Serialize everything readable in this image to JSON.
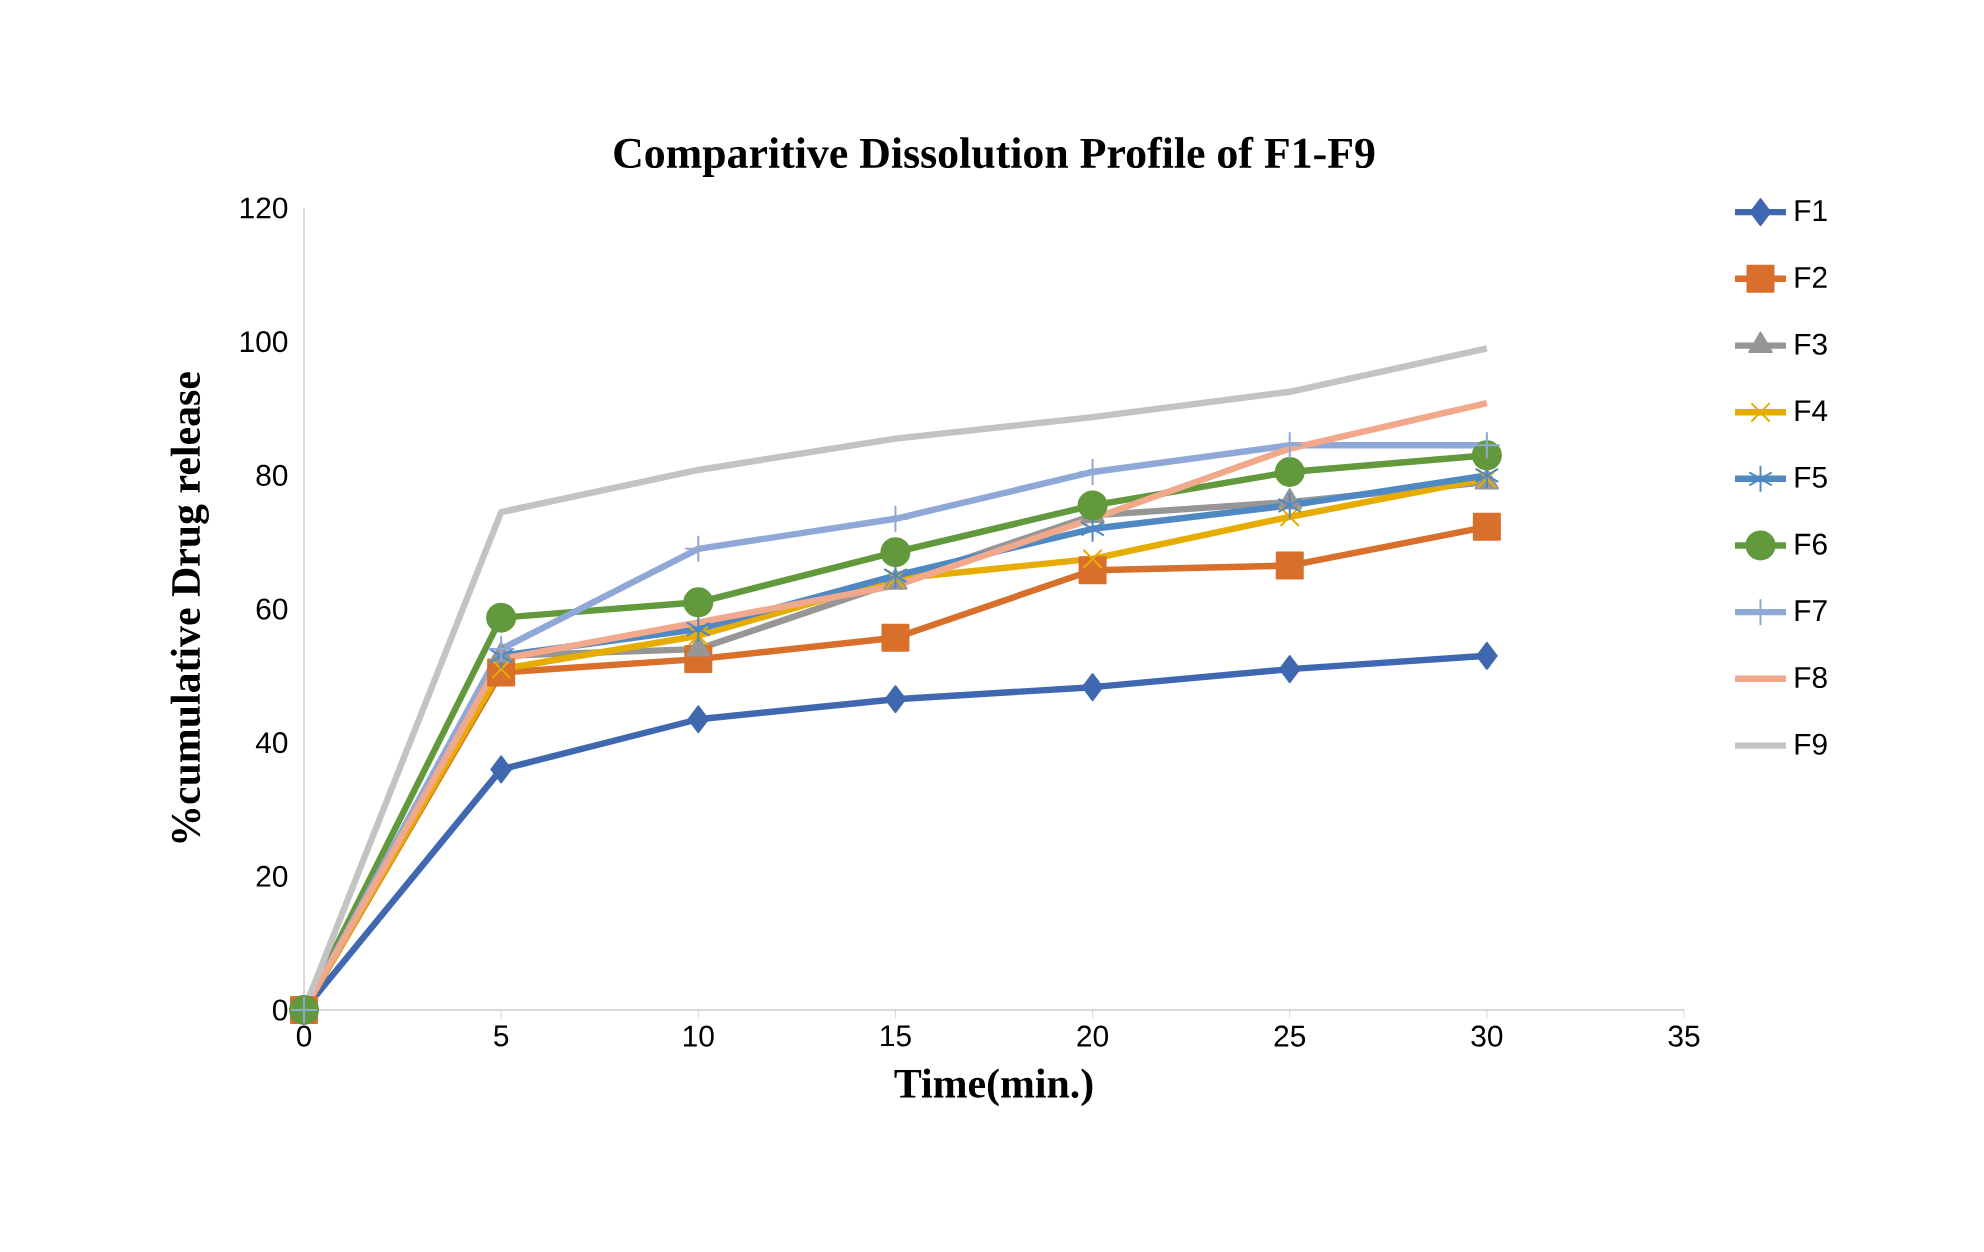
{
  "chart_data": {
    "type": "line",
    "title": "Comparitive Dissolution Profile of F1-F9",
    "xlabel": "Time(min.)",
    "ylabel": "%cumulative Drug release",
    "x": [
      0,
      5,
      10,
      15,
      20,
      25,
      30
    ],
    "xlim": [
      0,
      35
    ],
    "xticks": [
      0,
      5,
      10,
      15,
      20,
      25,
      30,
      35
    ],
    "ylim": [
      0,
      120
    ],
    "yticks": [
      0,
      20,
      40,
      60,
      80,
      100,
      120
    ],
    "grid": false,
    "legend": "right",
    "line_style": "solid",
    "series": [
      {
        "name": "F1",
        "color": "#4068b0",
        "marker": "diamond",
        "values": [
          0,
          36,
          43.5,
          46.5,
          48.3,
          51,
          53
        ]
      },
      {
        "name": "F2",
        "color": "#d86f2b",
        "marker": "square",
        "values": [
          0,
          50.5,
          52.5,
          55.7,
          65.8,
          66.5,
          72.3
        ]
      },
      {
        "name": "F3",
        "color": "#969696",
        "marker": "triangle",
        "values": [
          0,
          53,
          54,
          64,
          74,
          76,
          79
        ]
      },
      {
        "name": "F4",
        "color": "#e6ac00",
        "marker": "cross",
        "values": [
          0,
          51,
          56,
          64.5,
          67.5,
          73.8,
          79.5
        ]
      },
      {
        "name": "F5",
        "color": "#4f88c2",
        "marker": "cross",
        "values": [
          0,
          53,
          57,
          65,
          72,
          75.5,
          80
        ]
      },
      {
        "name": "F6",
        "color": "#62993c",
        "marker": "circle",
        "values": [
          0,
          58.7,
          61,
          68.5,
          75.5,
          80.5,
          83
        ]
      },
      {
        "name": "F7",
        "color": "#90a8d8",
        "marker": "cross",
        "values": [
          0,
          54,
          69,
          73.5,
          80.5,
          84.5,
          84.5
        ]
      },
      {
        "name": "F8",
        "color": "#f2a88a",
        "marker": "none",
        "values": [
          0,
          52.5,
          58,
          63.5,
          73.5,
          84,
          90.8
        ]
      },
      {
        "name": "F9",
        "color": "#c3c3c3",
        "marker": "none",
        "values": [
          0,
          74.5,
          80.8,
          85.5,
          88.7,
          92.5,
          99
        ]
      }
    ]
  }
}
